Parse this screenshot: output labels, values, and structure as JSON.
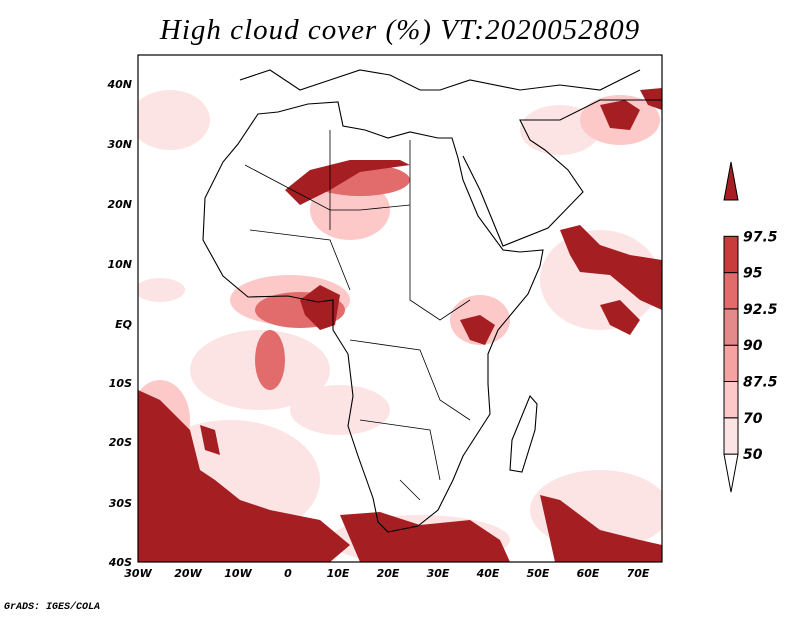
{
  "title": "High cloud cover (%) VT:2020052809",
  "footer": "GrADS: IGES/COLA",
  "map": {
    "lat_labels": [
      "40N",
      "30N",
      "20N",
      "10N",
      "EQ",
      "10S",
      "20S",
      "30S",
      "40S"
    ],
    "lon_labels": [
      "30W",
      "20W",
      "10W",
      "0",
      "10E",
      "20E",
      "30E",
      "40E",
      "50E",
      "60E",
      "70E"
    ],
    "lat_range": [
      -40,
      45
    ],
    "lon_range": [
      -30,
      75
    ]
  },
  "colorbar": {
    "levels": [
      "50",
      "70",
      "87.5",
      "90",
      "92.5",
      "95",
      "97.5"
    ],
    "colors": [
      "#ffffff",
      "#fde4e4",
      "#fcc8c8",
      "#f4a2a2",
      "#e38a8a",
      "#e26b6b",
      "#c83c3c",
      "#a51e22"
    ]
  }
}
